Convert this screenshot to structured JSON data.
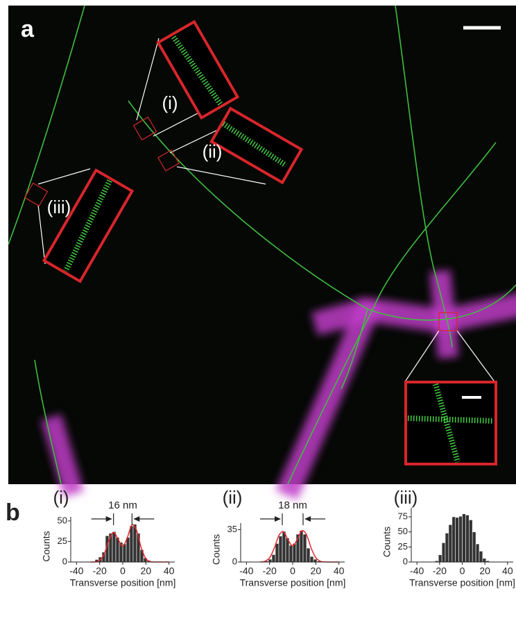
{
  "panel_a": {
    "label": "a",
    "insets": [
      "(i)",
      "(ii)",
      "(iii)"
    ]
  },
  "panel_b": {
    "label": "b"
  },
  "chart_data": [
    {
      "type": "histogram",
      "title": "(i)",
      "x_label": "Transverse position [nm]",
      "y_label": "Counts",
      "bins": [
        -24,
        -21,
        -18,
        -15,
        -12,
        -9,
        -6,
        -3,
        0,
        3,
        6,
        9,
        12,
        15,
        18,
        21,
        24
      ],
      "values": [
        3,
        6,
        12,
        32,
        35,
        37,
        30,
        24,
        22,
        30,
        44,
        46,
        35,
        15,
        5,
        2
      ],
      "color": "#333333",
      "fit_x": [
        -28,
        -24,
        -20,
        -16,
        -12,
        -8,
        -4,
        0,
        4,
        8,
        12,
        16,
        20,
        24,
        28,
        32,
        36,
        40
      ],
      "fit_values": [
        0,
        0.2,
        2,
        10,
        26.1,
        36.1,
        27.7,
        19.1,
        29.9,
        45.3,
        38.4,
        17.3,
        4.1,
        0.5,
        0,
        0,
        0,
        0
      ],
      "fit_color": "#e8262b",
      "annotation": {
        "text": "16 nm",
        "x": [
          -8,
          8
        ]
      },
      "xlim": [
        -45,
        45
      ],
      "xticks": [
        -40,
        -20,
        0,
        20,
        40
      ],
      "ylim": [
        0,
        55
      ],
      "yticks": [
        0,
        25,
        50
      ]
    },
    {
      "type": "histogram",
      "title": "(ii)",
      "x_label": "Transverse position [nm]",
      "y_label": "Counts",
      "bins": [
        -24,
        -21,
        -18,
        -15,
        -12,
        -9,
        -6,
        -3,
        0,
        3,
        6,
        9,
        12,
        15,
        18,
        21,
        24
      ],
      "values": [
        1,
        3,
        8,
        20,
        28,
        33,
        26,
        18,
        20,
        30,
        34,
        30,
        15,
        6,
        3,
        1
      ],
      "color": "#333333",
      "fit_x": [
        -28,
        -24,
        -20,
        -16,
        -12,
        -8,
        -4,
        0,
        4,
        8,
        12,
        16,
        20,
        24,
        28,
        32,
        36,
        40
      ],
      "fit_values": [
        0,
        0.8,
        4.5,
        14.7,
        28.4,
        32.8,
        23.9,
        17.5,
        24.5,
        33.8,
        29.3,
        15.1,
        4.6,
        0.8,
        0.1,
        0,
        0,
        0
      ],
      "fit_color": "#e8262b",
      "annotation": {
        "text": "18 nm",
        "x": [
          -9,
          9
        ]
      },
      "xlim": [
        -45,
        45
      ],
      "xticks": [
        -40,
        -20,
        0,
        20,
        40
      ],
      "ylim": [
        0,
        42
      ],
      "yticks": [
        0,
        35
      ]
    },
    {
      "type": "histogram",
      "title": "(iii)",
      "x_label": "Transverse position [nm]",
      "y_label": "Counts",
      "bins": [
        -24,
        -21,
        -18,
        -15,
        -12,
        -9,
        -6,
        -3,
        0,
        3,
        6,
        9,
        12,
        15,
        18,
        21,
        24
      ],
      "values": [
        2,
        12,
        32,
        48,
        62,
        75,
        74,
        76,
        80,
        78,
        70,
        50,
        30,
        18,
        6,
        2
      ],
      "color": "#333333",
      "xlim": [
        -45,
        45
      ],
      "xticks": [
        -40,
        -20,
        0,
        20,
        40
      ],
      "ylim": [
        0,
        90
      ],
      "yticks": [
        0,
        25,
        50,
        75
      ]
    }
  ]
}
